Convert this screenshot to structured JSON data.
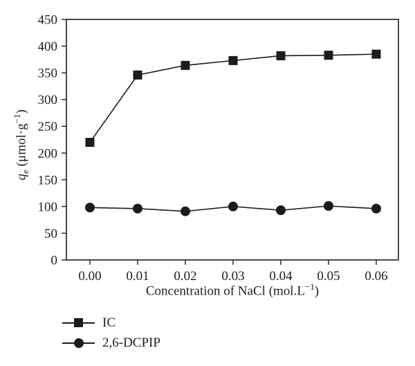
{
  "chart_data": {
    "type": "line",
    "x": [
      0.0,
      0.01,
      0.02,
      0.03,
      0.04,
      0.05,
      0.06
    ],
    "x_tick_labels": [
      "0.00",
      "0.01",
      "0.02",
      "0.03",
      "0.04",
      "0.05",
      "0.06"
    ],
    "series": [
      {
        "name": "IC",
        "marker": "square",
        "values": [
          220,
          346,
          364,
          373,
          382,
          383,
          385
        ]
      },
      {
        "name": "2,6-DCPIP",
        "marker": "circle",
        "values": [
          98,
          96,
          91,
          100,
          93,
          101,
          96
        ]
      }
    ],
    "title": "",
    "xlabel": "Concentration of NaCl (mol.L−1)",
    "ylabel": "qe (μmol·g−1)",
    "ylim": [
      0,
      450
    ],
    "ytick_step": 50,
    "grid": false,
    "legend_position": "bottom-left",
    "color": "#1c1c1c"
  },
  "labels": {
    "y_var": "q",
    "y_sub": "e",
    "y_unit_pre": " (μmol·g",
    "y_sup": "−1",
    "y_unit_post": ")",
    "x_pre": "Concentration of NaCl (mol.L",
    "x_sup": "−1",
    "x_post": ")"
  },
  "legend": {
    "items": [
      {
        "label": "IC",
        "marker": "square-marker-icon"
      },
      {
        "label": "2,6-DCPIP",
        "marker": "circle-marker-icon"
      }
    ]
  }
}
